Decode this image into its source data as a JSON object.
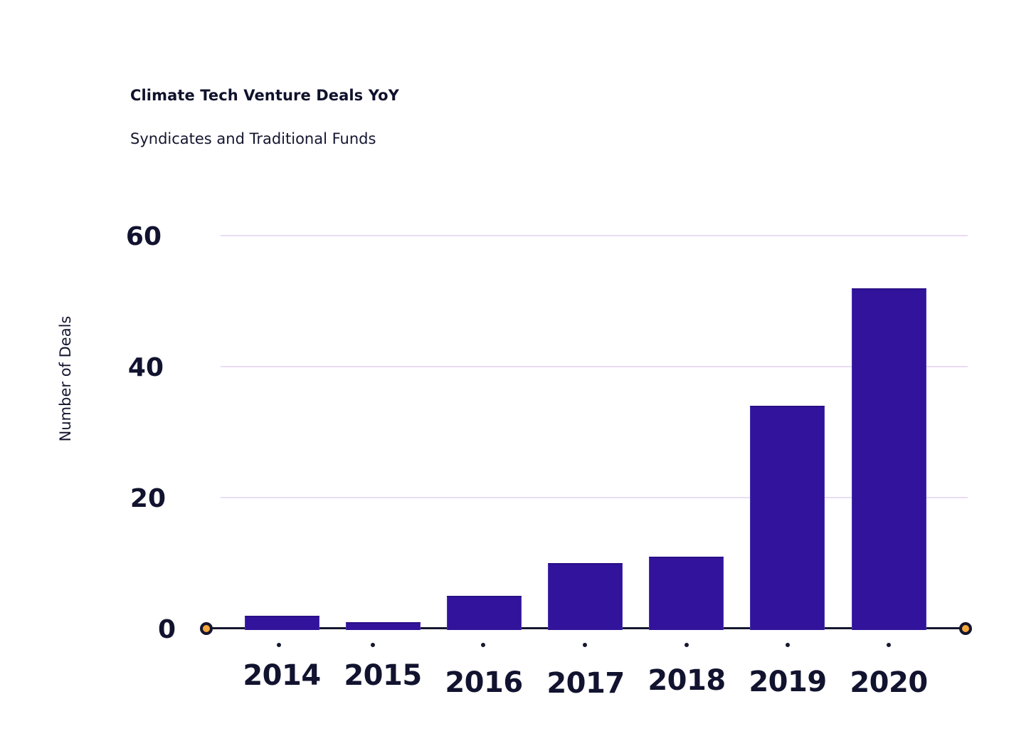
{
  "chart": {
    "title": "Climate Tech Venture Deals YoY",
    "subtitle": "Syndicates and Traditional Funds",
    "ylabel": "Number of Deals"
  },
  "chart_data": {
    "type": "bar",
    "title": "Climate Tech Venture Deals YoY",
    "subtitle": "Syndicates and Traditional Funds",
    "categories": [
      "2014",
      "2015",
      "2016",
      "2017",
      "2018",
      "2019",
      "2020"
    ],
    "values": [
      2,
      1,
      5,
      10,
      11,
      34,
      52
    ],
    "xlabel": "",
    "ylabel": "Number of Deals",
    "yticks": [
      0,
      20,
      40,
      60
    ],
    "ylim": [
      0,
      60
    ],
    "grid": "horizontal gridlines at 20, 40, 60",
    "legend": "none",
    "style": "hand-drawn look: x axis line with orange circular endpoints, small dot tick marks under each year label, slightly staggered labels",
    "colors": {
      "bar_fill": "#32139b",
      "gridline": "#e9dcf5",
      "axis_line": "#15152e",
      "text": "#11132f",
      "endpoint_fill": "#f6a73d",
      "background": "#ffffff"
    }
  }
}
